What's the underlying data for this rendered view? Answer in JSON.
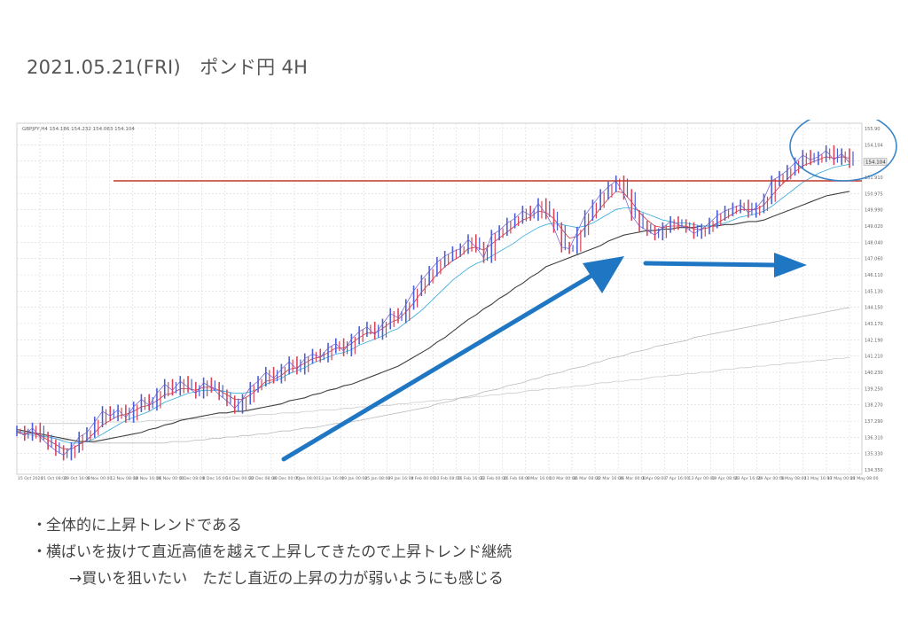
{
  "title": "2021.05.21(FRI)　ポンド円 4H",
  "notes": {
    "bullet": "・",
    "line1": "全体的に上昇トレンドである",
    "line2": "横ばいを抜けて直近高値を越えて上昇してきたので上昇トレンド継続",
    "line3": "→買いを狙いたい　ただし直近の上昇の力が弱いようにも感じる"
  },
  "chart_data": {
    "type": "line",
    "header_label": "GBPJPY,H4  154.186 154.232 154.063 154.104",
    "current_price_label": "154.104",
    "ylim": [
      133.9,
      155.9
    ],
    "y_ticks": [
      "155.90",
      "154.104",
      "152.950",
      "151.910",
      "150.975",
      "149.990",
      "149.020",
      "148.040",
      "147.060",
      "146.110",
      "145.130",
      "144.150",
      "143.170",
      "142.190",
      "141.210",
      "140.230",
      "139.250",
      "138.270",
      "137.290",
      "136.310",
      "135.330",
      "134.350"
    ],
    "x_ticks": [
      "15 Oct 2020",
      "21 Oct 08:00",
      "29 Oct 16:00",
      "6 Nov 00:00",
      "12 Nov 08:00",
      "18 Nov 16:00",
      "26 Nov 00:00",
      "2 Dec 08:00",
      "8 Dec 16:00",
      "14 Dec 00:00",
      "22 Dec 08:00",
      "30 Dec 00:00",
      "7 Jan 08:00",
      "13 Jan 16:00",
      "19 Jan 00:00",
      "25 Jan 08:00",
      "29 Jan 16:00",
      "4 Feb 00:00",
      "10 Feb 08:00",
      "16 Feb 16:00",
      "22 Feb 00:00",
      "26 Feb 08:00",
      "4 Mar 16:00",
      "10 Mar 00:00",
      "16 Mar 08:00",
      "22 Mar 16:00",
      "26 Mar 00:00",
      "1 Apr 08:00",
      "7 Apr 16:00",
      "13 Apr 00:00",
      "19 Apr 08:00",
      "23 Apr 16:00",
      "29 Apr 00:00",
      "5 May 08:00",
      "11 May 16:00",
      "17 May 00:00",
      "21 May 08:00"
    ],
    "horizontal_line": 152.9,
    "price": [
      136.3,
      136.0,
      136.5,
      135.9,
      135.4,
      135.0,
      134.7,
      135.2,
      135.9,
      136.2,
      136.9,
      137.6,
      137.3,
      137.7,
      137.2,
      137.9,
      138.4,
      138.0,
      138.8,
      139.4,
      139.0,
      139.6,
      139.2,
      138.8,
      139.5,
      139.2,
      138.7,
      138.3,
      137.8,
      138.4,
      139.2,
      139.6,
      140.2,
      139.8,
      140.4,
      140.9,
      140.4,
      141.1,
      141.4,
      141.2,
      141.8,
      142.1,
      141.6,
      142.4,
      142.9,
      143.2,
      142.7,
      143.4,
      144.1,
      143.8,
      144.7,
      145.6,
      146.3,
      146.9,
      147.5,
      147.9,
      148.2,
      148.4,
      149.0,
      148.5,
      147.8,
      149.3,
      149.6,
      150.1,
      150.4,
      150.9,
      150.6,
      151.4,
      150.7,
      149.8,
      148.5,
      148.4,
      149.5,
      150.6,
      151.3,
      152.0,
      152.5,
      152.9,
      152.0,
      150.6,
      149.9,
      149.6,
      149.3,
      149.8,
      150.2,
      150.0,
      149.8,
      149.4,
      149.7,
      150.1,
      150.6,
      150.9,
      151.1,
      151.3,
      150.8,
      151.1,
      151.7,
      152.9,
      153.2,
      153.6,
      154.1,
      154.6,
      154.3,
      154.5,
      154.9,
      154.3,
      154.7,
      154.1
    ],
    "series": [
      {
        "name": "",
        "color": "#cc3344",
        "values": [
          136.2,
          136.1,
          136.2,
          136.0,
          135.7,
          135.4,
          135.1,
          135.1,
          135.4,
          135.7,
          136.2,
          136.7,
          137.0,
          137.3,
          137.4,
          137.6,
          137.9,
          138.0,
          138.3,
          138.7,
          138.8,
          139.1,
          139.1,
          139.0,
          139.2,
          139.2,
          139.0,
          138.7,
          138.4,
          138.4,
          138.7,
          139.1,
          139.6,
          139.7,
          140.0,
          140.4,
          140.5,
          140.8,
          141.1,
          141.2,
          141.5,
          141.8,
          141.8,
          142.1,
          142.5,
          142.8,
          142.8,
          143.1,
          143.5,
          143.7,
          144.2,
          144.8,
          145.5,
          146.1,
          146.7,
          147.2,
          147.6,
          147.9,
          148.4,
          148.5,
          148.3,
          148.7,
          149.1,
          149.5,
          149.9,
          150.3,
          150.5,
          150.9,
          150.8,
          150.4,
          149.7,
          149.1,
          149.2,
          149.8,
          150.4,
          151.1,
          151.7,
          152.2,
          152.1,
          151.5,
          150.8,
          150.3,
          149.9,
          149.8,
          149.9,
          149.9,
          149.9,
          149.7,
          149.7,
          149.8,
          150.1,
          150.4,
          150.7,
          151.0,
          151.0,
          151.0,
          151.3,
          151.9,
          152.5,
          153.0,
          153.5,
          153.9,
          154.1,
          154.3,
          154.5,
          154.4,
          154.5,
          154.4
        ]
      },
      {
        "name": "",
        "color": "#33aadd",
        "values": [
          136.3,
          136.2,
          136.1,
          136.0,
          135.9,
          135.8,
          135.6,
          135.5,
          135.5,
          135.6,
          135.8,
          136.1,
          136.4,
          136.7,
          137.0,
          137.2,
          137.4,
          137.6,
          137.9,
          138.2,
          138.4,
          138.6,
          138.8,
          138.9,
          139.0,
          139.0,
          139.0,
          138.9,
          138.8,
          138.8,
          138.9,
          139.1,
          139.4,
          139.6,
          139.8,
          140.1,
          140.3,
          140.5,
          140.8,
          141.0,
          141.2,
          141.4,
          141.5,
          141.7,
          142.0,
          142.2,
          142.4,
          142.6,
          142.9,
          143.1,
          143.5,
          143.9,
          144.3,
          144.8,
          145.3,
          145.8,
          146.3,
          146.7,
          147.1,
          147.4,
          147.6,
          147.9,
          148.2,
          148.5,
          148.8,
          149.2,
          149.5,
          149.8,
          150.0,
          150.1,
          150.0,
          149.9,
          149.8,
          149.9,
          150.1,
          150.4,
          150.7,
          151.0,
          151.1,
          151.1,
          150.9,
          150.7,
          150.5,
          150.3,
          150.2,
          150.1,
          150.1,
          150.0,
          149.9,
          149.9,
          150.0,
          150.1,
          150.3,
          150.5,
          150.6,
          150.7,
          150.9,
          151.2,
          151.6,
          152.0,
          152.4,
          152.8,
          153.1,
          153.4,
          153.6,
          153.8,
          153.9,
          154.0
        ]
      },
      {
        "name": "",
        "color": "#404040",
        "values": [
          136.4,
          136.3,
          136.2,
          136.1,
          136.0,
          135.9,
          135.8,
          135.7,
          135.6,
          135.6,
          135.6,
          135.7,
          135.8,
          135.9,
          136.0,
          136.1,
          136.2,
          136.4,
          136.5,
          136.7,
          136.8,
          137.0,
          137.1,
          137.2,
          137.3,
          137.4,
          137.5,
          137.5,
          137.6,
          137.6,
          137.7,
          137.8,
          137.9,
          138.0,
          138.1,
          138.3,
          138.4,
          138.5,
          138.7,
          138.8,
          139.0,
          139.1,
          139.3,
          139.4,
          139.6,
          139.8,
          140.0,
          140.2,
          140.4,
          140.6,
          140.9,
          141.2,
          141.5,
          141.8,
          142.2,
          142.5,
          142.9,
          143.3,
          143.7,
          144.0,
          144.4,
          144.7,
          145.1,
          145.4,
          145.8,
          146.1,
          146.5,
          146.8,
          147.2,
          147.4,
          147.6,
          147.8,
          148.0,
          148.2,
          148.4,
          148.6,
          148.9,
          149.1,
          149.3,
          149.4,
          149.5,
          149.6,
          149.6,
          149.7,
          149.7,
          149.8,
          149.8,
          149.8,
          149.9,
          149.9,
          149.9,
          150.0,
          150.0,
          150.1,
          150.2,
          150.2,
          150.3,
          150.5,
          150.7,
          150.9,
          151.1,
          151.3,
          151.5,
          151.7,
          151.9,
          152.0,
          152.1,
          152.2
        ]
      },
      {
        "name": "",
        "color": "#bbbbbb",
        "values": [
          136.2,
          136.1,
          136.0,
          135.9,
          135.9,
          135.8,
          135.7,
          135.7,
          135.6,
          135.6,
          135.5,
          135.5,
          135.5,
          135.5,
          135.5,
          135.5,
          135.5,
          135.5,
          135.5,
          135.5,
          135.6,
          135.6,
          135.6,
          135.7,
          135.7,
          135.8,
          135.8,
          135.9,
          135.9,
          136.0,
          136.0,
          136.1,
          136.1,
          136.2,
          136.3,
          136.3,
          136.4,
          136.5,
          136.5,
          136.6,
          136.7,
          136.8,
          136.8,
          136.9,
          137.0,
          137.1,
          137.2,
          137.3,
          137.4,
          137.5,
          137.6,
          137.7,
          137.8,
          137.9,
          138.1,
          138.2,
          138.3,
          138.5,
          138.6,
          138.7,
          138.9,
          139.0,
          139.1,
          139.3,
          139.4,
          139.5,
          139.7,
          139.8,
          140.0,
          140.1,
          140.2,
          140.4,
          140.5,
          140.6,
          140.8,
          140.9,
          141.1,
          141.2,
          141.3,
          141.5,
          141.6,
          141.7,
          141.9,
          142.0,
          142.1,
          142.2,
          142.3,
          142.5,
          142.6,
          142.7,
          142.8,
          142.9,
          143.0,
          143.1,
          143.2,
          143.3,
          143.4,
          143.5,
          143.6,
          143.7,
          143.8,
          143.9,
          144.0,
          144.1,
          144.2,
          144.3,
          144.4,
          144.5
        ]
      },
      {
        "name": "",
        "color": "#cccccc",
        "values": [
          136.8,
          136.8,
          136.8,
          136.8,
          136.8,
          136.8,
          136.8,
          136.8,
          136.8,
          136.8,
          136.8,
          136.9,
          136.9,
          136.9,
          136.9,
          136.9,
          136.9,
          137.0,
          137.0,
          137.0,
          137.0,
          137.1,
          137.1,
          137.1,
          137.1,
          137.2,
          137.2,
          137.2,
          137.3,
          137.3,
          137.3,
          137.4,
          137.4,
          137.4,
          137.5,
          137.5,
          137.5,
          137.6,
          137.6,
          137.7,
          137.7,
          137.7,
          137.8,
          137.8,
          137.9,
          137.9,
          137.9,
          138.0,
          138.0,
          138.1,
          138.1,
          138.2,
          138.2,
          138.3,
          138.3,
          138.4,
          138.4,
          138.5,
          138.5,
          138.6,
          138.6,
          138.7,
          138.7,
          138.8,
          138.8,
          138.9,
          139.0,
          139.0,
          139.1,
          139.1,
          139.2,
          139.2,
          139.3,
          139.3,
          139.4,
          139.5,
          139.5,
          139.6,
          139.6,
          139.7,
          139.7,
          139.8,
          139.9,
          139.9,
          140.0,
          140.0,
          140.1,
          140.1,
          140.2,
          140.2,
          140.3,
          140.4,
          140.4,
          140.5,
          140.5,
          140.6,
          140.6,
          140.7,
          140.7,
          140.8,
          140.8,
          140.9,
          140.9,
          141.0,
          141.0,
          141.1,
          141.1,
          141.2
        ]
      }
    ],
    "annotations": {
      "arrows": [
        "uptrend-arrow",
        "sideways-arrow"
      ],
      "circle": "recent-high-circle",
      "arrow_color": "#1f77c4",
      "circle_color": "#3a86c8",
      "hline_color": "#c0392b"
    }
  }
}
